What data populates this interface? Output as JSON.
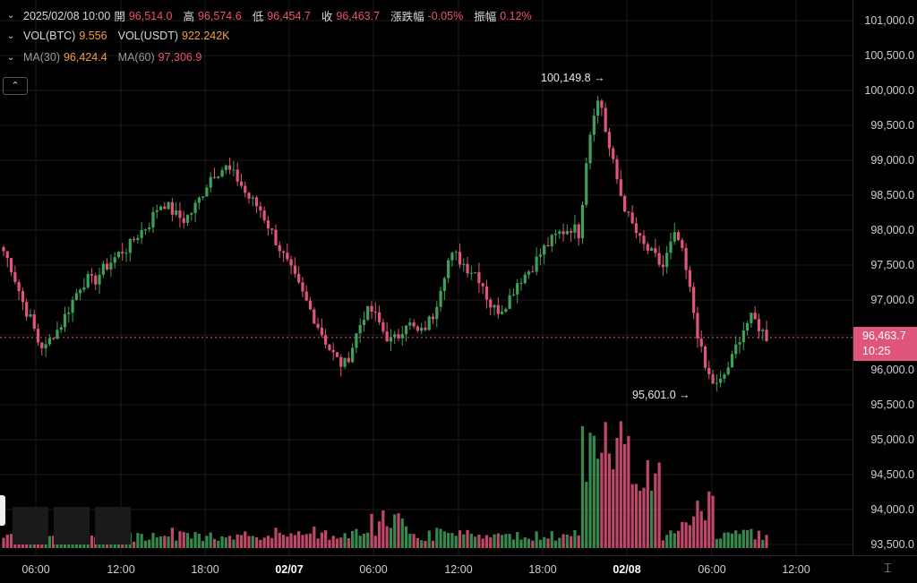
{
  "ohlc_bar": {
    "datetime": "2025/02/08 10:00",
    "open_label": "開",
    "open_value": "96,514.0",
    "high_label": "高",
    "high_value": "96,574.6",
    "low_label": "低",
    "low_value": "96,454.7",
    "close_label": "收",
    "close_value": "96,463.7",
    "change_label": "漲跌幅",
    "change_value": "-0.05%",
    "amplitude_label": "振幅",
    "amplitude_value": "0.12%"
  },
  "volume_bar": {
    "vol_btc_label": "VOL(BTC)",
    "vol_btc_value": "9.556",
    "vol_usdt_label": "VOL(USDT)",
    "vol_usdt_value": "922.242K"
  },
  "ma_bar": {
    "ma30_label": "MA(30)",
    "ma30_value": "96,424.4",
    "ma60_label": "MA(60)",
    "ma60_value": "97,306.9"
  },
  "price_axis": [
    "101,000.0",
    "100,500.0",
    "100,000.0",
    "99,500.0",
    "99,000.0",
    "98,500.0",
    "98,000.0",
    "97,500.0",
    "97,000.0",
    "96,500.0",
    "96,000.0",
    "95,500.0",
    "95,000.0",
    "94,500.0",
    "94,000.0",
    "93,500.0"
  ],
  "time_axis": [
    "06:00",
    "12:00",
    "18:00",
    "02/07",
    "06:00",
    "12:00",
    "18:00",
    "02/08",
    "06:00",
    "12:00"
  ],
  "current_price": {
    "price": "96,463.7",
    "countdown": "10:25"
  },
  "annotations": {
    "high_marker": "100,149.8",
    "low_marker": "95,601.0"
  },
  "colors": {
    "up": "#3fa05a",
    "down": "#e0557a",
    "current_line": "#e0557a"
  },
  "icons": {
    "collapse": "chevron-up-icon",
    "axis_setting": "axis-setting-icon"
  },
  "chart_data": {
    "type": "candlestick",
    "ylim": [
      93350,
      101150
    ],
    "series_close": [
      97700,
      97500,
      97200,
      96900,
      96700,
      96400,
      96300,
      96500,
      96600,
      96800,
      97000,
      97200,
      97300,
      97250,
      97400,
      97500,
      97600,
      97700,
      97750,
      97900,
      98000,
      98100,
      98300,
      98400,
      98300,
      98200,
      98150,
      98250,
      98400,
      98600,
      98800,
      98850,
      98900,
      98800,
      98700,
      98500,
      98400,
      98300,
      98100,
      97900,
      97700,
      97500,
      97300,
      97100,
      96900,
      96700,
      96500,
      96300,
      96150,
      96050,
      96250,
      96550,
      96800,
      96850,
      96700,
      96500,
      96400,
      96500,
      96700,
      96600,
      96500,
      96650,
      96800,
      97200,
      97550,
      97650,
      97550,
      97450,
      97400,
      97250,
      96950,
      96850,
      96900,
      97050,
      97250,
      97350,
      97450,
      97600,
      97750,
      97850,
      97950,
      98000,
      98050,
      97950,
      99000,
      99700,
      99900,
      99300,
      98900,
      98500,
      98200,
      98000,
      97800,
      97700,
      97600,
      97450,
      97750,
      97950,
      97600,
      97100,
      96550,
      96050,
      95850,
      95750,
      95950,
      96150,
      96450,
      96650,
      96750,
      96600,
      96470
    ]
  }
}
